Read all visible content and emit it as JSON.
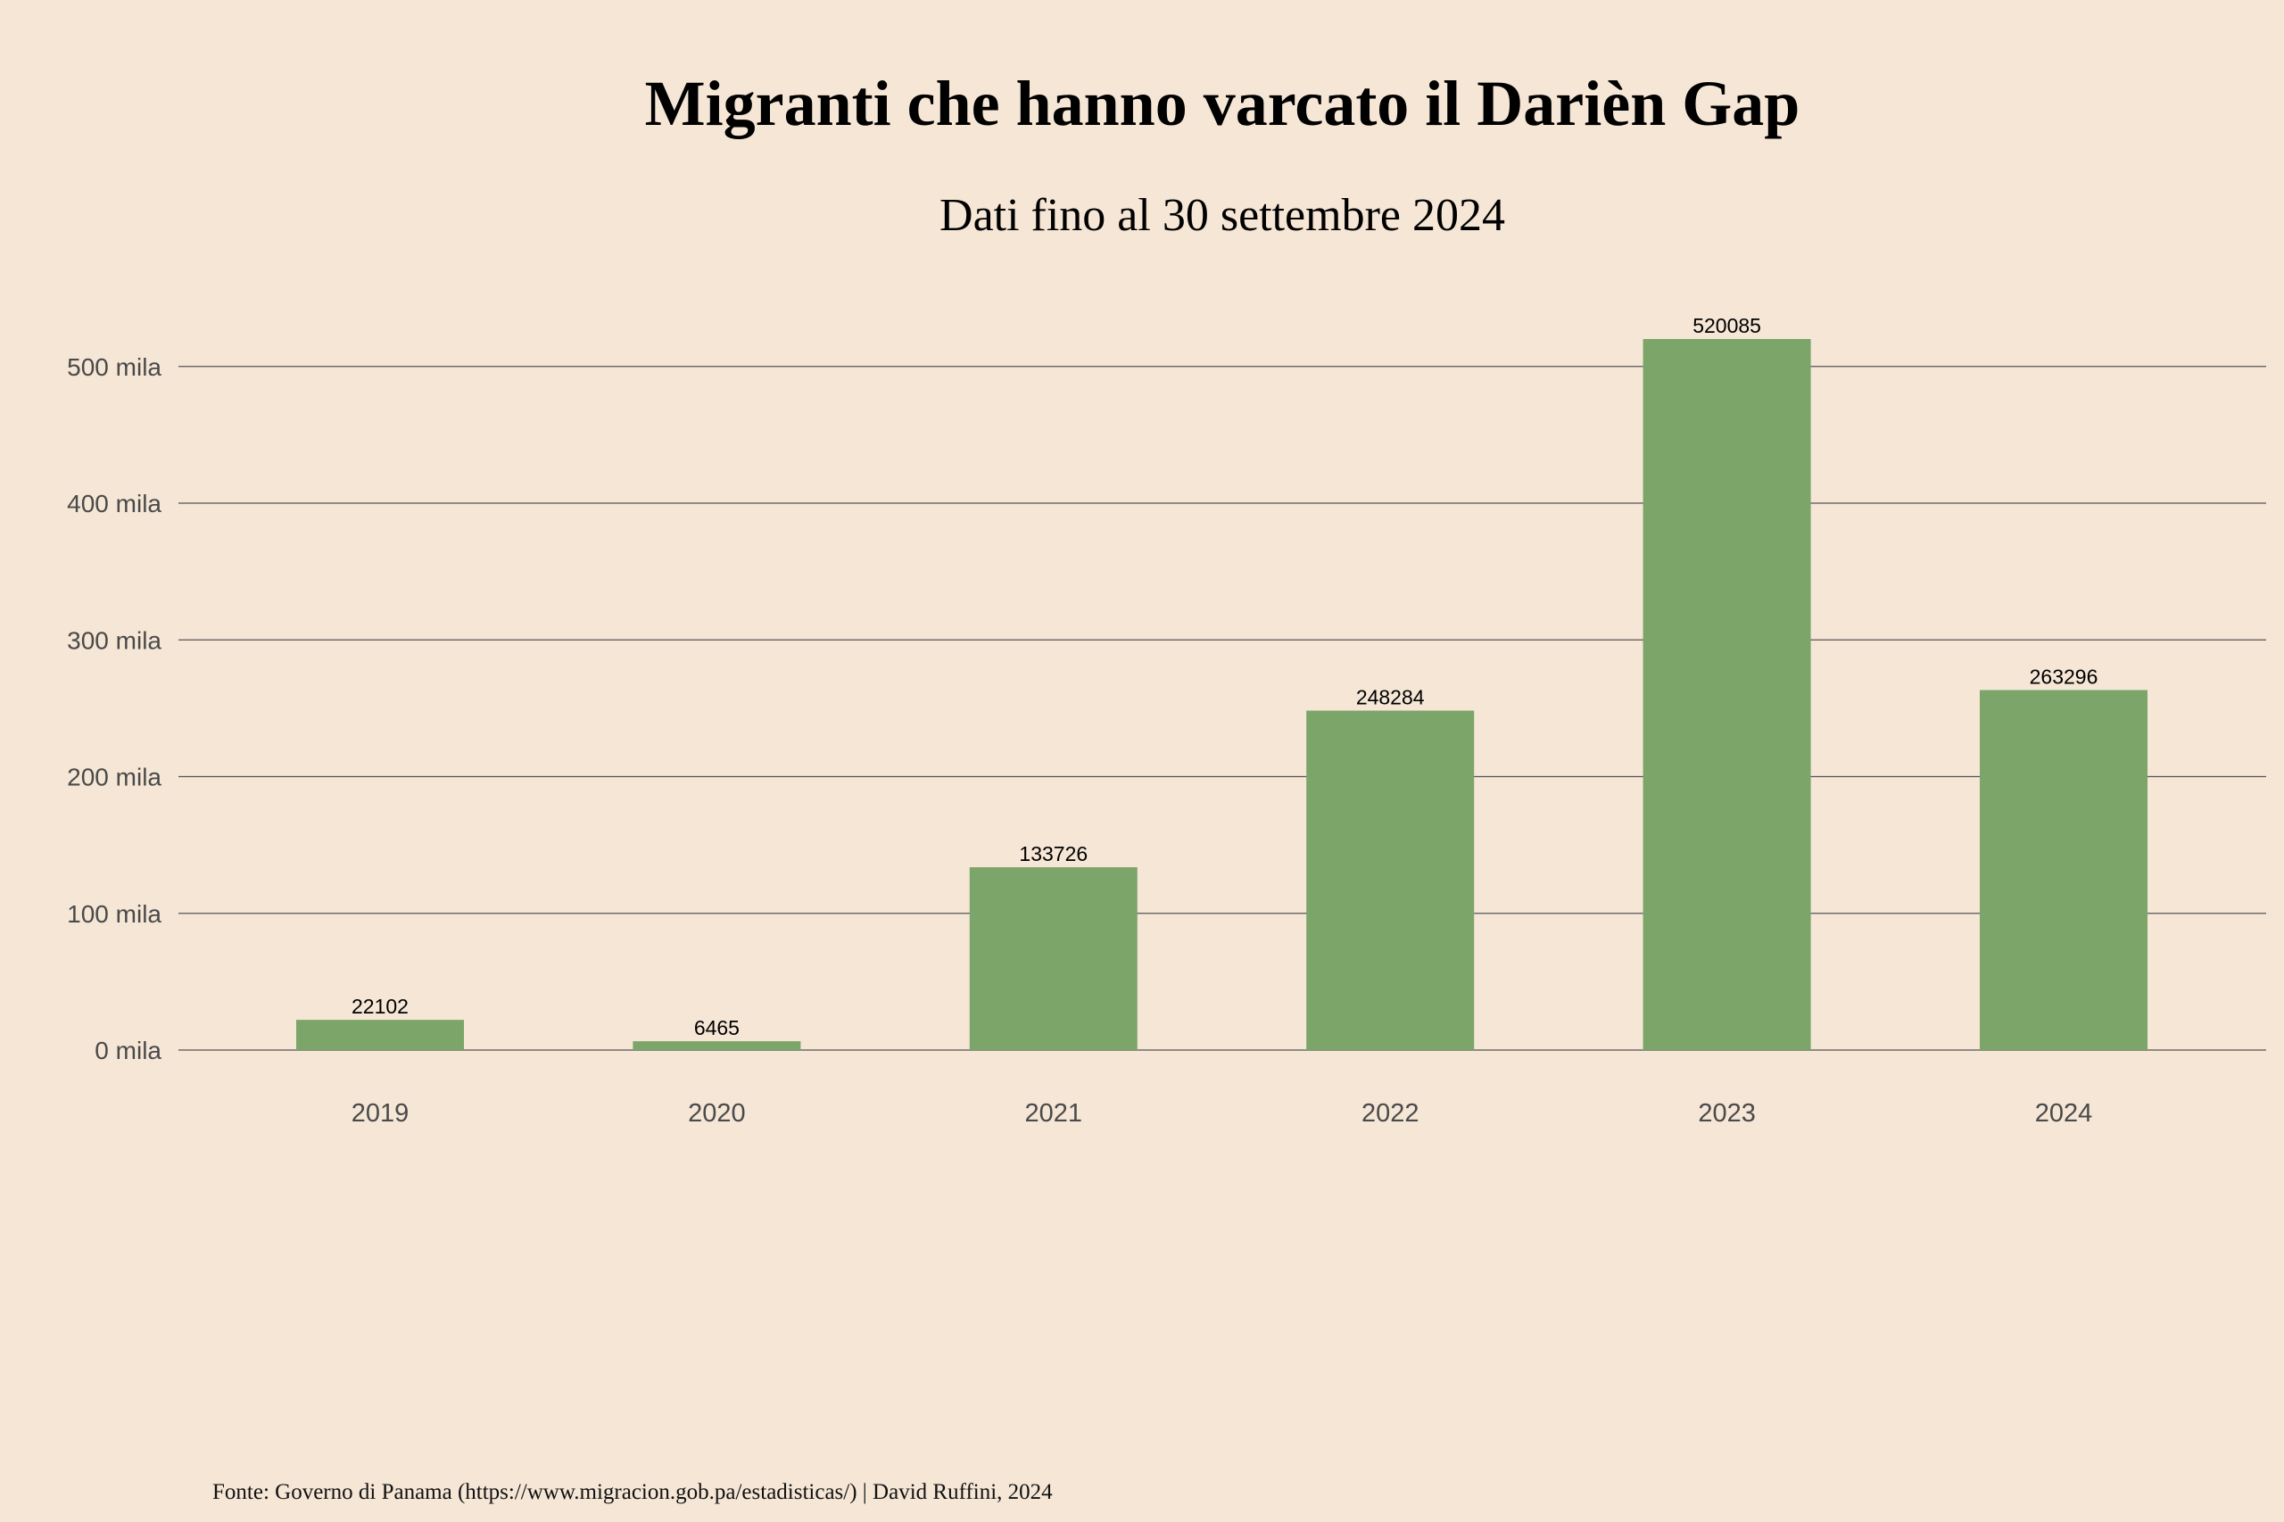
{
  "chart_data": {
    "type": "bar",
    "title": "Migranti che hanno varcato il Darièn Gap",
    "subtitle": "Dati fino al 30 settembre 2024",
    "categories": [
      "2019",
      "2020",
      "2021",
      "2022",
      "2023",
      "2024"
    ],
    "values": [
      22102,
      6465,
      133726,
      248284,
      520085,
      263296
    ],
    "data_labels": [
      "22102",
      "6465",
      "133726",
      "248284",
      "520085",
      "263296"
    ],
    "yticks": [
      0,
      100000,
      200000,
      300000,
      400000,
      500000
    ],
    "ytick_labels": [
      "0 mila",
      "100 mila",
      "200 mila",
      "300 mila",
      "400 mila",
      "500 mila"
    ],
    "ylim": [
      0,
      520085
    ],
    "xlabel": "",
    "ylabel": "",
    "grid": true,
    "bar_color": "#7ca56a",
    "source": "Fonte: Governo di Panama (https://www.migracion.gob.pa/estadisticas/) | David Ruffini, 2024"
  }
}
